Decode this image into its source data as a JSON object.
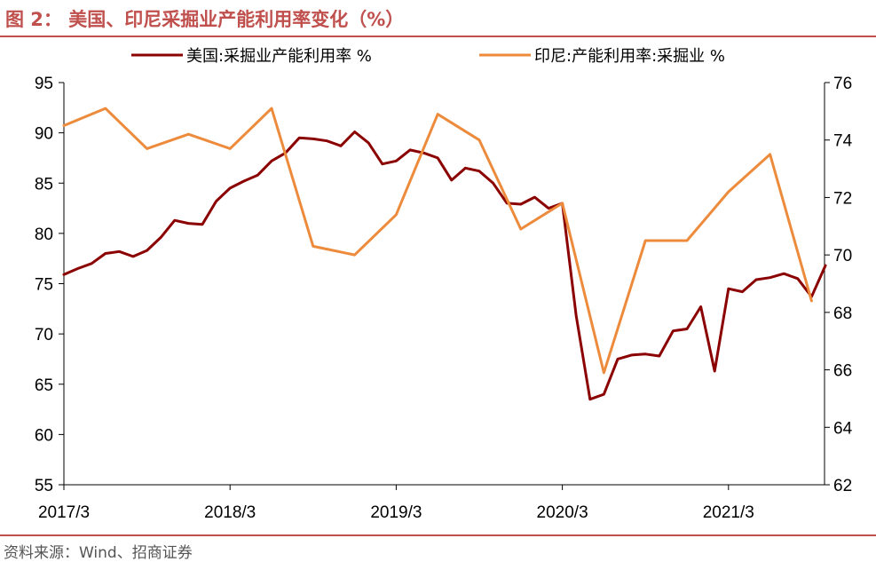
{
  "header": {
    "title": "图 2：  美国、印尼采掘业产能利用率变化（%）"
  },
  "footer": {
    "source": "资料来源：Wind、招商证券"
  },
  "colors": {
    "brand": "#C0504D",
    "us_series": "#8B0000",
    "indo_series": "#ED8B3C"
  },
  "chart_data": {
    "type": "line",
    "title": "",
    "x_labels": [
      "2017/3",
      "2018/3",
      "2019/3",
      "2020/3",
      "2021/3"
    ],
    "yleft": {
      "lim": [
        55,
        95
      ],
      "ticks": [
        55,
        60,
        65,
        70,
        75,
        80,
        85,
        90,
        95
      ]
    },
    "yright": {
      "lim": [
        62,
        76
      ],
      "ticks": [
        62,
        64,
        66,
        68,
        70,
        72,
        74,
        76
      ]
    },
    "grid": false,
    "legend_position": "top",
    "series": [
      {
        "name": "美国:采掘业产能利用率 %",
        "axis": "left",
        "x": [
          "2017-03",
          "2017-04",
          "2017-05",
          "2017-06",
          "2017-07",
          "2017-08",
          "2017-09",
          "2017-10",
          "2017-11",
          "2017-12",
          "2018-01",
          "2018-02",
          "2018-03",
          "2018-04",
          "2018-05",
          "2018-06",
          "2018-07",
          "2018-08",
          "2018-09",
          "2018-10",
          "2018-11",
          "2018-12",
          "2019-01",
          "2019-02",
          "2019-03",
          "2019-04",
          "2019-05",
          "2019-06",
          "2019-07",
          "2019-08",
          "2019-09",
          "2019-10",
          "2019-11",
          "2019-12",
          "2020-01",
          "2020-02",
          "2020-03",
          "2020-04",
          "2020-05",
          "2020-06",
          "2020-07",
          "2020-08",
          "2020-09",
          "2020-10",
          "2020-11",
          "2020-12",
          "2021-01",
          "2021-02",
          "2021-03",
          "2021-04",
          "2021-05",
          "2021-06",
          "2021-07",
          "2021-08",
          "2021-09",
          "2021-10"
        ],
        "values": [
          75.9,
          76.5,
          77.0,
          78.0,
          78.2,
          77.7,
          78.3,
          79.6,
          81.3,
          81.0,
          80.9,
          83.2,
          84.5,
          85.2,
          85.8,
          87.2,
          88.0,
          89.5,
          89.4,
          89.2,
          88.7,
          90.1,
          89.0,
          86.9,
          87.2,
          88.3,
          88.0,
          87.5,
          85.3,
          86.5,
          86.2,
          85.0,
          83.0,
          82.9,
          83.6,
          82.5,
          83.0,
          71.8,
          63.5,
          64.0,
          67.5,
          67.9,
          68.0,
          67.8,
          70.3,
          70.5,
          72.7,
          66.3,
          74.5,
          74.2,
          75.4,
          75.6,
          76.0,
          75.5,
          73.7,
          76.8
        ]
      },
      {
        "name": "印尼:产能利用率:采掘业 %",
        "axis": "right",
        "x": [
          "2017-03",
          "2017-06",
          "2017-09",
          "2017-12",
          "2018-03",
          "2018-06",
          "2018-09",
          "2018-12",
          "2019-03",
          "2019-06",
          "2019-09",
          "2019-12",
          "2020-03",
          "2020-06",
          "2020-09",
          "2020-12",
          "2021-03",
          "2021-06",
          "2021-09"
        ],
        "values": [
          74.5,
          75.1,
          73.7,
          74.2,
          73.7,
          75.1,
          70.3,
          70.0,
          71.4,
          74.9,
          74.0,
          70.9,
          71.8,
          65.9,
          70.5,
          70.5,
          72.2,
          73.5,
          68.4
        ]
      }
    ]
  }
}
